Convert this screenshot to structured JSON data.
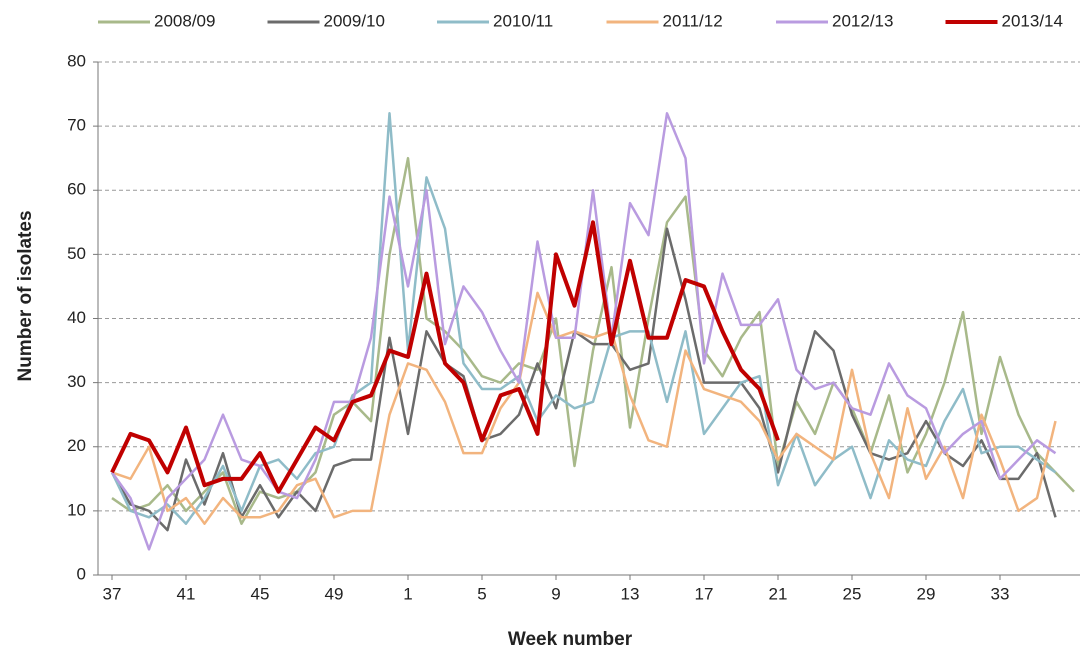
{
  "chart_data": {
    "type": "line",
    "x_label": "Week number",
    "y_label": "Number of isolates",
    "categories": [
      "37",
      null,
      null,
      null,
      "41",
      null,
      null,
      null,
      "45",
      null,
      null,
      null,
      "49",
      null,
      null,
      null,
      "1",
      null,
      null,
      null,
      "5",
      null,
      null,
      null,
      "9",
      null,
      null,
      null,
      "13",
      null,
      null,
      null,
      "17",
      null,
      null,
      null,
      "21",
      null,
      null,
      null,
      "25",
      null,
      null,
      null,
      "29",
      null,
      null,
      null,
      "33",
      null,
      null,
      null,
      null
    ],
    "ylim": [
      0,
      80
    ],
    "yticks": [
      0,
      10,
      20,
      30,
      40,
      50,
      60,
      70,
      80
    ],
    "grid": true,
    "legend": "top",
    "series": [
      {
        "name": "2008/09",
        "color": "#a8b98a",
        "values": [
          12,
          10,
          11,
          14,
          10,
          13,
          16,
          8,
          13,
          12,
          13,
          16,
          25,
          27,
          24,
          50,
          65,
          40,
          38,
          35,
          31,
          30,
          33,
          32,
          40,
          17,
          35,
          48,
          23,
          40,
          55,
          59,
          35,
          31,
          37,
          41,
          17,
          27,
          22,
          30,
          26,
          19,
          28,
          16,
          22,
          30,
          41,
          22,
          34,
          25,
          19,
          16,
          13
        ]
      },
      {
        "name": "2009/10",
        "color": "#6b6b6b",
        "values": [
          16,
          11,
          10,
          7,
          18,
          11,
          19,
          9,
          14,
          9,
          13,
          10,
          17,
          18,
          18,
          37,
          22,
          38,
          33,
          31,
          21,
          22,
          25,
          33,
          26,
          38,
          36,
          36,
          32,
          33,
          54,
          43,
          30,
          30,
          30,
          26,
          16,
          28,
          38,
          35,
          25,
          19,
          18,
          19,
          24,
          19,
          17,
          21,
          15,
          15,
          19,
          9,
          null
        ]
      },
      {
        "name": "2010/11",
        "color": "#8fbcc8",
        "values": [
          16,
          10,
          9,
          11,
          8,
          12,
          17,
          10,
          17,
          18,
          15,
          19,
          20,
          28,
          30,
          72,
          35,
          62,
          54,
          33,
          29,
          29,
          31,
          24,
          28,
          26,
          27,
          37,
          38,
          38,
          27,
          38,
          22,
          26,
          30,
          31,
          14,
          22,
          14,
          18,
          20,
          12,
          21,
          18,
          17,
          24,
          29,
          19,
          20,
          20,
          18,
          16,
          null
        ]
      },
      {
        "name": "2011/12",
        "color": "#f2b47e",
        "values": [
          16,
          15,
          20,
          10,
          12,
          8,
          12,
          9,
          9,
          10,
          14,
          15,
          9,
          10,
          10,
          25,
          33,
          32,
          27,
          19,
          19,
          26,
          30,
          44,
          37,
          38,
          37,
          38,
          28,
          21,
          20,
          35,
          29,
          28,
          27,
          24,
          18,
          22,
          20,
          18,
          32,
          19,
          12,
          26,
          15,
          20,
          12,
          25,
          18,
          10,
          12,
          24,
          null
        ]
      },
      {
        "name": "2012/13",
        "color": "#b99be0",
        "values": [
          16,
          12,
          4,
          12,
          15,
          18,
          25,
          18,
          17,
          13,
          12,
          18,
          27,
          27,
          37,
          59,
          45,
          60,
          36,
          45,
          41,
          35,
          30,
          52,
          37,
          37,
          60,
          37,
          58,
          53,
          72,
          65,
          33,
          47,
          39,
          39,
          43,
          32,
          29,
          30,
          26,
          25,
          33,
          28,
          26,
          19,
          22,
          24,
          15,
          18,
          21,
          19,
          null
        ]
      },
      {
        "name": "2013/14",
        "color": "#c00000",
        "values": [
          16,
          22,
          21,
          16,
          23,
          14,
          15,
          15,
          19,
          13,
          18,
          23,
          21,
          27,
          28,
          35,
          34,
          47,
          33,
          30,
          21,
          28,
          29,
          22,
          50,
          42,
          55,
          36,
          49,
          37,
          37,
          46,
          45,
          38,
          32,
          29,
          21,
          null,
          null,
          null,
          null,
          null,
          null,
          null,
          null,
          null,
          null,
          null,
          null,
          null,
          null,
          null,
          null
        ]
      }
    ]
  }
}
